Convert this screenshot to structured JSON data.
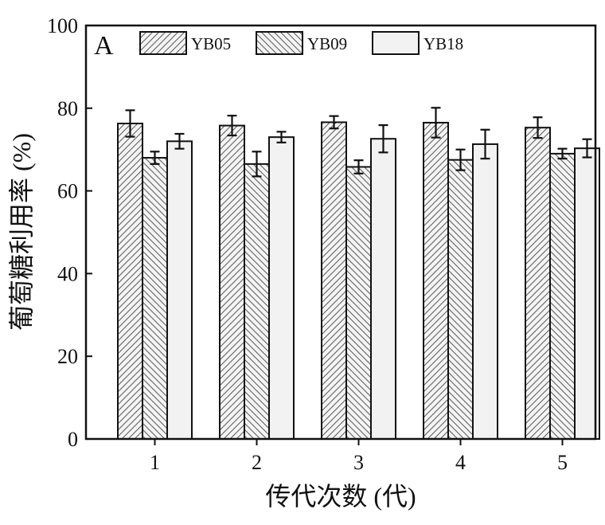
{
  "chart_data": {
    "type": "bar",
    "panel_label": "A",
    "categories": [
      "1",
      "2",
      "3",
      "4",
      "5"
    ],
    "series": [
      {
        "name": "YB05",
        "values": [
          76.3,
          75.8,
          76.6,
          76.5,
          75.3
        ],
        "errors": [
          3.2,
          2.4,
          1.5,
          3.6,
          2.5
        ]
      },
      {
        "name": "YB09",
        "values": [
          68.0,
          66.5,
          65.8,
          67.5,
          69.0
        ],
        "errors": [
          1.5,
          3.0,
          1.6,
          2.5,
          1.2
        ]
      },
      {
        "name": "YB18",
        "values": [
          72.0,
          73.0,
          72.6,
          71.3,
          70.3
        ],
        "errors": [
          1.8,
          1.3,
          3.3,
          3.5,
          2.2
        ]
      }
    ],
    "xlabel": "传代次数 (代)",
    "ylabel": "葡萄糖利用率 (%)",
    "ylim": [
      0,
      100
    ],
    "yticks": [
      0,
      20,
      40,
      60,
      80,
      100
    ],
    "grid": false,
    "legend_position": "top",
    "colors": {
      "axis": "#111111",
      "bar_fill": "#f2f2f2",
      "pattern": "#444444"
    },
    "patterns": [
      "forward-hatch",
      "backward-hatch",
      "solid"
    ]
  }
}
